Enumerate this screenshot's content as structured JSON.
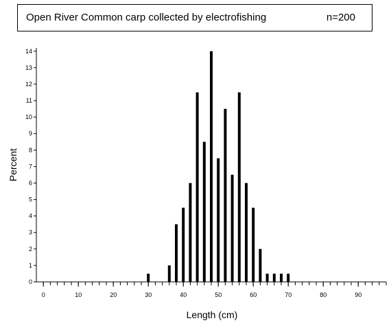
{
  "title": {
    "text": "Open River Common carp collected by electrofishing",
    "n_label": "n=200"
  },
  "chart_data": {
    "type": "bar",
    "title": "Open River Common carp collected by electrofishing",
    "xlabel": "Length (cm)",
    "ylabel": "Percent",
    "xlim": [
      -2,
      98
    ],
    "ylim": [
      0,
      14.2
    ],
    "x_ticks": [
      0,
      10,
      20,
      30,
      40,
      50,
      60,
      70,
      80,
      90
    ],
    "y_ticks": [
      0,
      1,
      2,
      3,
      4,
      5,
      6,
      7,
      8,
      9,
      10,
      11,
      12,
      13,
      14
    ],
    "x_minor_step": 2,
    "grid": false,
    "x": [
      30,
      36,
      38,
      40,
      42,
      44,
      46,
      48,
      50,
      52,
      54,
      56,
      58,
      60,
      62,
      64,
      66,
      68,
      70
    ],
    "values": [
      0.5,
      1,
      3.5,
      4.5,
      6,
      11.5,
      8.5,
      14,
      7.5,
      10.5,
      6.5,
      11.5,
      6,
      4.5,
      2,
      0.5,
      0.5,
      0.5,
      0.5
    ]
  },
  "colors": {
    "bar": "#000000",
    "axis": "#000000",
    "background": "#ffffff"
  }
}
